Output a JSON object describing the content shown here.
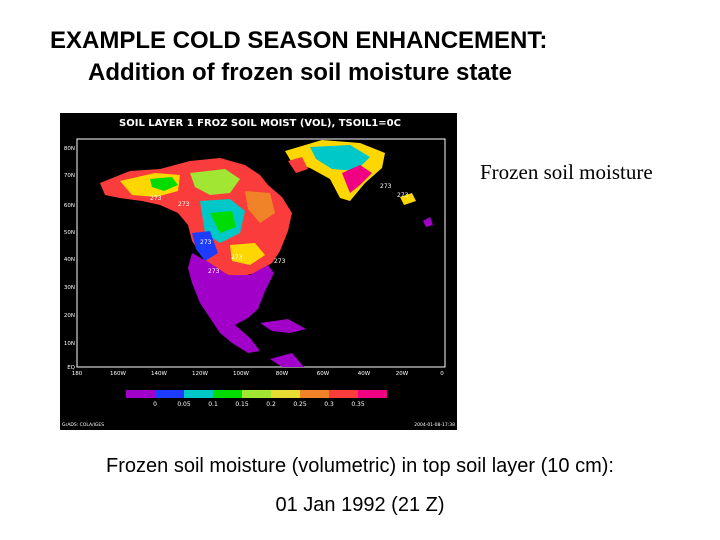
{
  "slide": {
    "title_line1": "EXAMPLE COLD SEASON ENHANCEMENT:",
    "title_line2": "Addition of frozen soil moisture state",
    "side_label": "Frozen soil moisture",
    "caption_line1": "Frozen soil moisture (volumetric) in top soil layer (10 cm):",
    "caption_line2": "01 Jan 1992 (21 Z)"
  },
  "map": {
    "title": "SOIL LAYER 1 FROZ SOIL MOIST (VOL), TSOIL1=0C",
    "lat_labels": [
      "80N",
      "70N",
      "60N",
      "50N",
      "40N",
      "30N",
      "20N",
      "10N",
      "EQ"
    ],
    "lon_labels": [
      "180",
      "160W",
      "140W",
      "120W",
      "100W",
      "80W",
      "60W",
      "40W",
      "20W",
      "0"
    ],
    "colorbar_ticks": [
      "0",
      "0.05",
      "0.1",
      "0.15",
      "0.2",
      "0.25",
      "0.3",
      "0.35"
    ],
    "colorbar_colors": [
      "#a000c8",
      "#1e3cff",
      "#00c8c8",
      "#00dc00",
      "#a0e632",
      "#e6dc32",
      "#f08228",
      "#fa3c3c",
      "#f00082"
    ],
    "contour_labels": [
      "273",
      "273",
      "273",
      "273",
      "273",
      "273",
      "273",
      "273"
    ],
    "footer_left": "GrADS: COLA/IGES",
    "footer_right": "2004-01-08-17:38"
  }
}
